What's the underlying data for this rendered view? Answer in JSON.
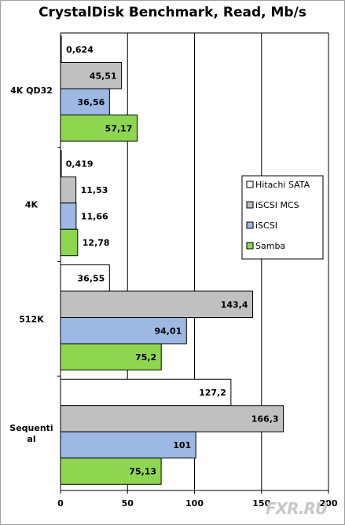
{
  "chart_data": {
    "type": "bar",
    "orientation": "horizontal",
    "title": "CrystalDisk Benchmark, Read, Mb/s",
    "categories": [
      "4K QD32",
      "4K",
      "512K",
      "Sequential"
    ],
    "category_display": [
      "4K QD32",
      "4K",
      "512K",
      "Sequenti|al"
    ],
    "series": [
      {
        "name": "Hitachi SATA",
        "color": "#ffffff",
        "values": [
          0.624,
          0.419,
          36.55,
          127.2
        ],
        "labels": [
          "0,624",
          "0,419",
          "36,55",
          "127,2"
        ]
      },
      {
        "name": "iSCSI MCS",
        "color": "#c0c0c0",
        "values": [
          45.51,
          11.53,
          143.4,
          166.3
        ],
        "labels": [
          "45,51",
          "11,53",
          "143,4",
          "166,3"
        ]
      },
      {
        "name": "iSCSI",
        "color": "#9db9e3",
        "values": [
          36.56,
          11.66,
          94.01,
          101
        ],
        "labels": [
          "36,56",
          "11,66",
          "94,01",
          "101"
        ]
      },
      {
        "name": "Samba",
        "color": "#8fd650",
        "values": [
          57.17,
          12.78,
          75.2,
          75.13
        ],
        "labels": [
          "57,17",
          "12,78",
          "75,2",
          "75,13"
        ]
      }
    ],
    "xlim": [
      0,
      200
    ],
    "xticks": [
      0,
      50,
      100,
      150,
      200
    ],
    "grid": "vertical",
    "legend_position": "right"
  },
  "watermark": "FXR.RU"
}
